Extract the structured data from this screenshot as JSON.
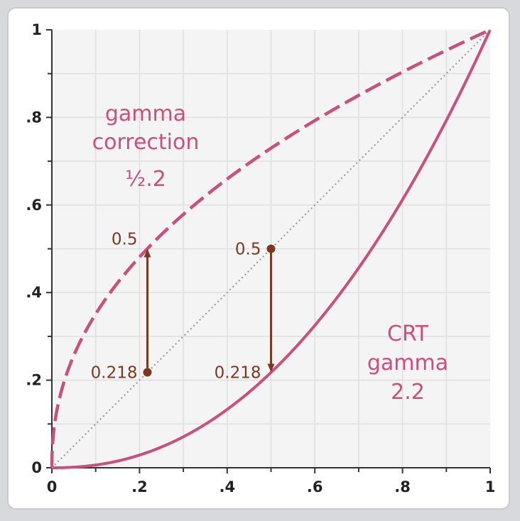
{
  "chart_data": {
    "type": "line",
    "xlim": [
      0,
      1
    ],
    "ylim": [
      0,
      1
    ],
    "grid": true,
    "x_tick_labels": [
      "0",
      ".2",
      ".4",
      ".6",
      ".8",
      "1"
    ],
    "y_tick_labels": [
      "0",
      ".2",
      ".4",
      ".6",
      ".8",
      "1"
    ],
    "series": [
      {
        "style": "dashed",
        "exponent": 0.4545,
        "color": "#c94f7c",
        "x": [
          0,
          0.1,
          0.218,
          0.3,
          0.4,
          0.5,
          0.6,
          0.7,
          0.8,
          0.9,
          1
        ],
        "y": [
          0,
          0.351,
          0.5,
          0.579,
          0.659,
          0.73,
          0.793,
          0.85,
          0.903,
          0.953,
          1
        ]
      },
      {
        "style": "solid",
        "exponent": 2.2,
        "color": "#c94f7c",
        "x": [
          0,
          0.1,
          0.2,
          0.3,
          0.4,
          0.5,
          0.6,
          0.7,
          0.8,
          0.9,
          1
        ],
        "y": [
          0,
          0.006,
          0.029,
          0.071,
          0.133,
          0.218,
          0.325,
          0.456,
          0.612,
          0.793,
          1
        ]
      },
      {
        "style": "dotted",
        "color": "#999999",
        "x": [
          0,
          1
        ],
        "y": [
          0,
          1
        ]
      }
    ],
    "annotations": [
      {
        "from": [
          0.218,
          0.218
        ],
        "to": [
          0.218,
          0.5
        ],
        "start_label": "0.218",
        "end_label": "0.5",
        "color": "#7a3a22"
      },
      {
        "from": [
          0.5,
          0.5
        ],
        "to": [
          0.5,
          0.218
        ],
        "start_label": "0.5",
        "end_label": "0.218",
        "color": "#7a3a22"
      }
    ],
    "curve_labels": {
      "correction": [
        "gamma",
        "correction",
        "½.2"
      ],
      "crt": [
        "CRT",
        "gamma",
        "2.2"
      ]
    }
  }
}
